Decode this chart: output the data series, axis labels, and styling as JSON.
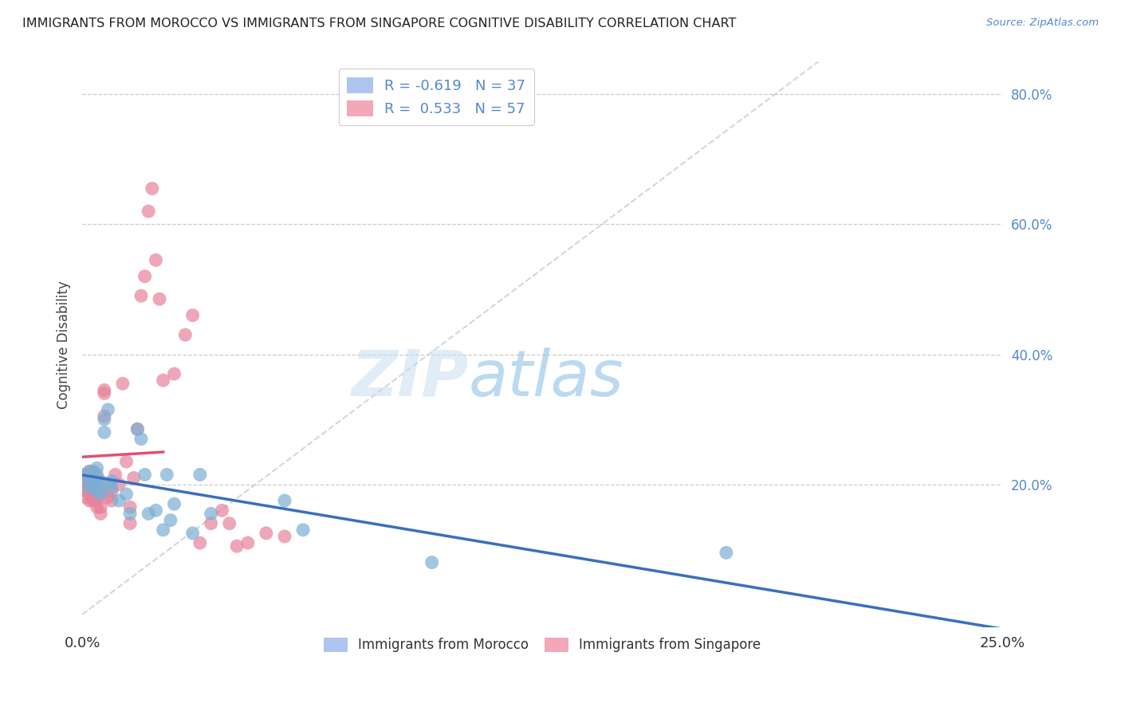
{
  "title": "IMMIGRANTS FROM MOROCCO VS IMMIGRANTS FROM SINGAPORE COGNITIVE DISABILITY CORRELATION CHART",
  "source": "Source: ZipAtlas.com",
  "ylabel": "Cognitive Disability",
  "xlim": [
    0.0,
    0.25
  ],
  "ylim": [
    -0.02,
    0.85
  ],
  "xticks": [
    0.0,
    0.05,
    0.1,
    0.15,
    0.2,
    0.25
  ],
  "xtick_labels": [
    "0.0%",
    "",
    "",
    "",
    "",
    "25.0%"
  ],
  "yticks_right": [
    0.2,
    0.4,
    0.6,
    0.8
  ],
  "ytick_labels_right": [
    "20.0%",
    "40.0%",
    "60.0%",
    "80.0%"
  ],
  "watermark_zip": "ZIP",
  "watermark_atlas": "atlas",
  "series_morocco": {
    "color": "#7bafd4",
    "trendline_color": "#3a6fbe",
    "x": [
      0.001,
      0.001,
      0.002,
      0.002,
      0.003,
      0.003,
      0.003,
      0.004,
      0.004,
      0.004,
      0.005,
      0.005,
      0.005,
      0.006,
      0.006,
      0.007,
      0.008,
      0.008,
      0.01,
      0.012,
      0.013,
      0.015,
      0.016,
      0.017,
      0.018,
      0.02,
      0.022,
      0.023,
      0.024,
      0.025,
      0.03,
      0.032,
      0.035,
      0.055,
      0.06,
      0.095,
      0.175
    ],
    "y": [
      0.215,
      0.205,
      0.22,
      0.195,
      0.218,
      0.21,
      0.2,
      0.225,
      0.21,
      0.19,
      0.205,
      0.195,
      0.185,
      0.3,
      0.28,
      0.315,
      0.205,
      0.195,
      0.175,
      0.185,
      0.155,
      0.285,
      0.27,
      0.215,
      0.155,
      0.16,
      0.13,
      0.215,
      0.145,
      0.17,
      0.125,
      0.215,
      0.155,
      0.175,
      0.13,
      0.08,
      0.095
    ]
  },
  "series_singapore": {
    "color": "#e8829a",
    "trendline_color": "#e05070",
    "x": [
      0.0005,
      0.001,
      0.001,
      0.001,
      0.001,
      0.001,
      0.002,
      0.002,
      0.002,
      0.002,
      0.002,
      0.003,
      0.003,
      0.003,
      0.003,
      0.003,
      0.004,
      0.004,
      0.004,
      0.004,
      0.004,
      0.005,
      0.005,
      0.005,
      0.006,
      0.006,
      0.006,
      0.007,
      0.007,
      0.008,
      0.008,
      0.009,
      0.01,
      0.011,
      0.012,
      0.013,
      0.013,
      0.014,
      0.015,
      0.016,
      0.017,
      0.018,
      0.019,
      0.02,
      0.021,
      0.022,
      0.025,
      0.028,
      0.03,
      0.032,
      0.035,
      0.038,
      0.04,
      0.042,
      0.045,
      0.05,
      0.055
    ],
    "y": [
      0.215,
      0.18,
      0.19,
      0.2,
      0.205,
      0.195,
      0.175,
      0.185,
      0.195,
      0.21,
      0.22,
      0.175,
      0.18,
      0.195,
      0.2,
      0.22,
      0.165,
      0.175,
      0.185,
      0.2,
      0.215,
      0.155,
      0.165,
      0.185,
      0.34,
      0.345,
      0.305,
      0.18,
      0.2,
      0.175,
      0.19,
      0.215,
      0.2,
      0.355,
      0.235,
      0.14,
      0.165,
      0.21,
      0.285,
      0.49,
      0.52,
      0.62,
      0.655,
      0.545,
      0.485,
      0.36,
      0.37,
      0.43,
      0.46,
      0.11,
      0.14,
      0.16,
      0.14,
      0.105,
      0.11,
      0.125,
      0.12
    ]
  },
  "background_color": "#ffffff",
  "grid_color": "#cccccc",
  "title_color": "#222222",
  "axis_label_color": "#444444",
  "right_tick_color": "#5588cc",
  "legend_border_color": "#cccccc",
  "diag_line_color": "#cccccc"
}
